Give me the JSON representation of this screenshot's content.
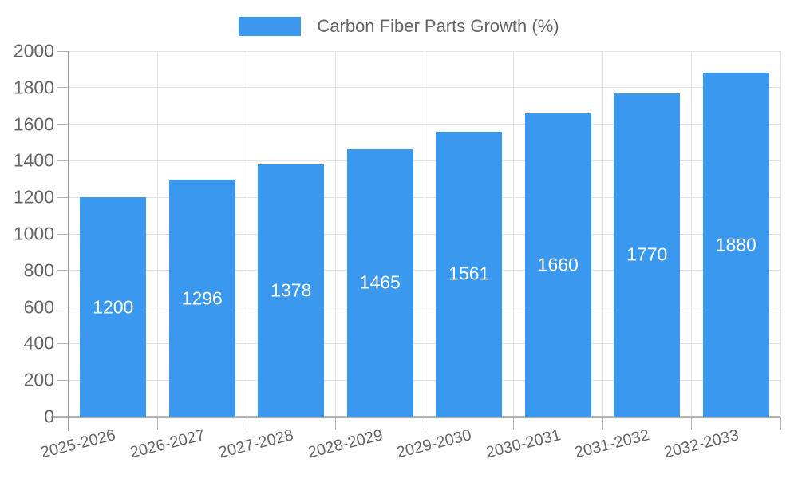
{
  "legend": {
    "label": "Carbon Fiber Parts Growth (%)"
  },
  "chart_data": {
    "type": "bar",
    "title": "",
    "legend_entries": [
      "Carbon Fiber Parts Growth (%)"
    ],
    "legend_position": "top",
    "categories": [
      "2025-2026",
      "2026-2027",
      "2027-2028",
      "2028-2029",
      "2029-2030",
      "2030-2031",
      "2031-2032",
      "2032-2033"
    ],
    "values": [
      1200,
      1296,
      1378,
      1465,
      1561,
      1660,
      1770,
      1880
    ],
    "bar_labels": [
      "1200",
      "1296",
      "1378",
      "1465",
      "1561",
      "1660",
      "1770",
      "1880"
    ],
    "xlabel": "",
    "ylabel": "",
    "ylim": [
      0,
      2000
    ],
    "yticks": [
      0,
      200,
      400,
      600,
      800,
      1000,
      1200,
      1400,
      1600,
      1800,
      2000
    ],
    "grid": true,
    "colors": {
      "bar": "#3a99ee",
      "axis_text": "#666666",
      "bar_label_text": "#ffffff",
      "gridline": "#e3e3e3",
      "axis_line": "#999999",
      "baseline": "#b3b3b3",
      "background": "#ffffff"
    }
  }
}
